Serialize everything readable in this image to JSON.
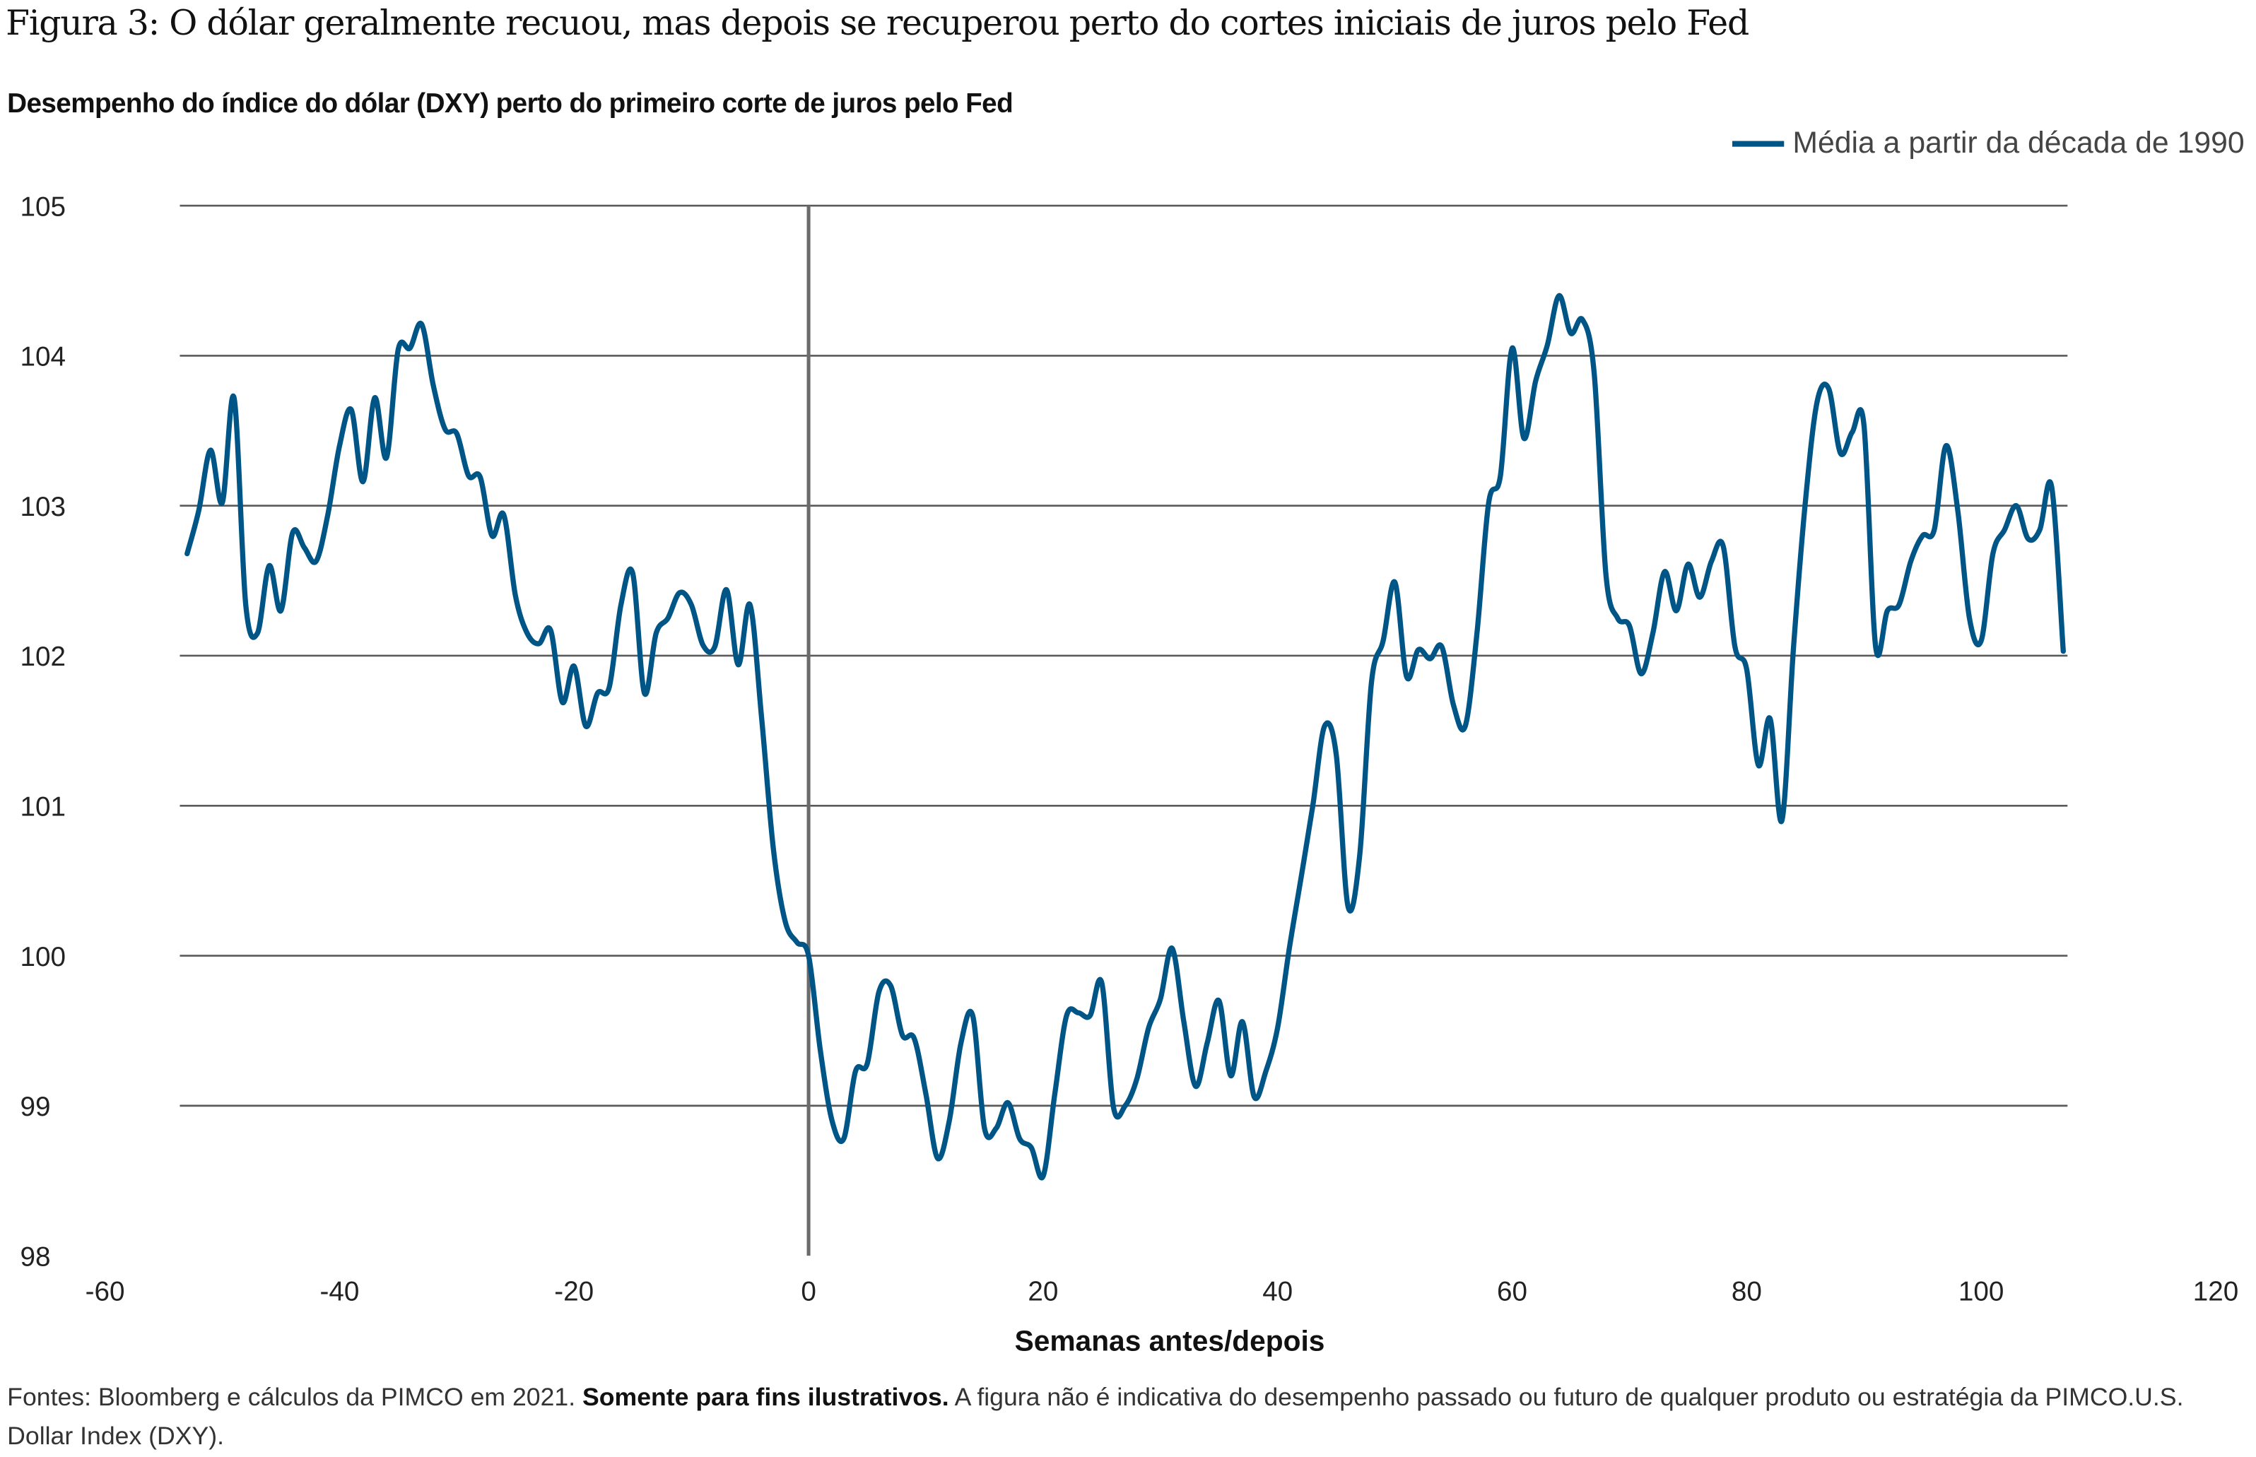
{
  "chart_data": {
    "type": "line",
    "title": "Figura 3: O dólar geralmente recuou, mas depois se recuperou perto do cortes iniciais de juros pelo Fed",
    "subtitle": "Desempenho do índice do dólar (DXY) perto do primeiro corte de juros pelo Fed",
    "xlabel": "Semanas antes/depois",
    "ylabel": "",
    "xlim": [
      -60,
      120
    ],
    "ylim": [
      98,
      105
    ],
    "xticks": [
      "-60",
      "-40",
      "-20",
      "0",
      "20",
      "40",
      "60",
      "80",
      "100",
      "120"
    ],
    "yticks": [
      "98",
      "99",
      "100",
      "101",
      "102",
      "103",
      "104",
      "105"
    ],
    "grid": "horizontal",
    "legend_position": "top-right",
    "series": [
      {
        "name": "Média a partir da década de 1990",
        "color": "#005587",
        "x_start": -53,
        "values": [
          102.68,
          102.97,
          103.37,
          103.02,
          103.72,
          102.34,
          102.15,
          102.6,
          102.3,
          102.82,
          102.72,
          102.63,
          102.94,
          103.4,
          103.64,
          103.16,
          103.72,
          103.32,
          104.04,
          104.05,
          104.21,
          103.8,
          103.51,
          103.48,
          103.2,
          103.19,
          102.8,
          102.94,
          102.4,
          102.15,
          102.08,
          102.17,
          101.69,
          101.93,
          101.53,
          101.75,
          101.79,
          102.34,
          102.55,
          101.75,
          102.15,
          102.25,
          102.42,
          102.34,
          102.07,
          102.06,
          102.44,
          101.94,
          102.34,
          101.58,
          100.71,
          100.23,
          100.09,
          100.0,
          99.37,
          98.9,
          98.78,
          99.23,
          99.28,
          99.76,
          99.8,
          99.47,
          99.45,
          99.08,
          98.65,
          98.9,
          99.42,
          99.6,
          98.85,
          98.85,
          99.02,
          98.78,
          98.72,
          98.53,
          99.08,
          99.6,
          99.62,
          99.6,
          99.82,
          98.99,
          99.0,
          99.18,
          99.52,
          99.71,
          100.05,
          99.56,
          99.13,
          99.42,
          99.7,
          99.2,
          99.56,
          99.06,
          99.23,
          99.52,
          100.05,
          100.52,
          101.0,
          101.53,
          101.34,
          100.33,
          100.67,
          101.82,
          102.1,
          102.49,
          101.86,
          102.04,
          101.98,
          102.06,
          101.67,
          101.53,
          102.15,
          103.02,
          103.2,
          104.05,
          103.45,
          103.83,
          104.07,
          104.4,
          104.15,
          104.24,
          103.88,
          102.54,
          102.25,
          102.2,
          101.88,
          102.15,
          102.56,
          102.3,
          102.61,
          102.39,
          102.63,
          102.73,
          102.06,
          101.91,
          101.27,
          101.58,
          100.9,
          102.06,
          103.02,
          103.69,
          103.78,
          103.35,
          103.49,
          103.54,
          102.06,
          102.3,
          102.34,
          102.63,
          102.8,
          102.84,
          103.4,
          102.97,
          102.25,
          102.1,
          102.68,
          102.84,
          103.0,
          102.78,
          102.84,
          103.13,
          102.03
        ]
      }
    ],
    "annotations": [
      "vertical line at week 0"
    ]
  },
  "footnote": {
    "part1": "Fontes: Bloomberg e cálculos da PIMCO em 2021. ",
    "bold": "Somente para fins ilustrativos.",
    "part2": " A figura não é indicativa do desempenho passado ou futuro de qualquer produto ou estratégia da PIMCO.U.S. Dollar Index (DXY)."
  }
}
